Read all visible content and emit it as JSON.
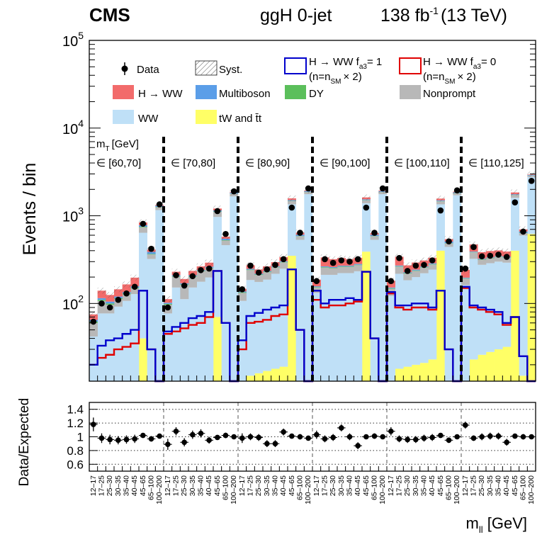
{
  "header": {
    "experiment": "CMS",
    "category": "ggH 0-jet",
    "lumi_value": "138 fb",
    "lumi_exp": "-1",
    "energy": "(13 TeV)"
  },
  "legend": {
    "data": "Data",
    "syst": "Syst.",
    "sig1_a": "H → WW f",
    "sig1_sub": "a3",
    "sig1_b": "= 1",
    "sig1_note_a": "(n=n",
    "sig1_note_sub": "SM",
    "sig1_note_b": "× 2)",
    "sig0_a": "H → WW f",
    "sig0_sub": "a3",
    "sig0_b": "= 0",
    "sig0_note_a": "(n=n",
    "sig0_note_sub": "SM",
    "sig0_note_b": "× 2)",
    "hww": "H → WW",
    "multiboson": "Multiboson",
    "dy": "DY",
    "nonprompt": "Nonprompt",
    "ww": "WW",
    "top": "tW and t̄t"
  },
  "mt_label": "m",
  "mt_sub": "T",
  "mt_unit": "[GeV]",
  "colors": {
    "hww": "#f26b6b",
    "multiboson": "#5b9ee8",
    "dy": "#5bbf5b",
    "nonprompt": "#b8b8b8",
    "ww": "#bfe0f7",
    "top": "#ffff66",
    "sig1": "#0000cc",
    "sig0": "#e00000"
  },
  "chart_data": [
    {
      "type": "bar",
      "title": "ggH 0-jet",
      "stacked": true,
      "log_y": true,
      "ylabel": "Events / bin",
      "xlabel": "m_ll [GeV]",
      "ylim": [
        13,
        100000
      ],
      "y_ticks": [
        {
          "value": 100,
          "base": "10",
          "exp": "2"
        },
        {
          "value": 1000,
          "base": "10",
          "exp": "3"
        },
        {
          "value": 10000,
          "base": "10",
          "exp": "4"
        },
        {
          "value": 100000,
          "base": "10",
          "exp": "5"
        }
      ],
      "mt_bins": [
        "∈ [60,70]",
        "∈ [70,80]",
        "∈ [80,90]",
        "∈ [90,100]",
        "∈ [100,110]",
        "∈ [110,125]"
      ],
      "mll_labels": [
        "12–17",
        "17–25",
        "25–30",
        "30–35",
        "35–40",
        "40–45",
        "45–65",
        "65–100",
        "100–200"
      ],
      "data": [
        [
          62,
          100,
          90,
          110,
          130,
          155,
          810,
          420,
          1350
        ],
        [
          90,
          210,
          160,
          205,
          240,
          250,
          1130,
          620,
          1900
        ],
        [
          145,
          270,
          225,
          245,
          275,
          320,
          1240,
          640,
          2050
        ],
        [
          180,
          320,
          290,
          310,
          300,
          320,
          1240,
          640,
          2050
        ],
        [
          180,
          330,
          235,
          270,
          275,
          310,
          1150,
          510,
          1950
        ],
        [
          250,
          440,
          345,
          350,
          360,
          340,
          1420,
          660,
          2500
        ]
      ],
      "top": [
        [
          12,
          12,
          12,
          12,
          12,
          13,
          40,
          12,
          12
        ],
        [
          12,
          12,
          12,
          12,
          12,
          13,
          70,
          12,
          12
        ],
        [
          12,
          15,
          16,
          17,
          18,
          19,
          350,
          12,
          12
        ],
        [
          12,
          12,
          12,
          12,
          12,
          13,
          390,
          12,
          12
        ],
        [
          12,
          18,
          19,
          20,
          21,
          23,
          400,
          12,
          12
        ],
        [
          12,
          23,
          26,
          28,
          30,
          32,
          400,
          15,
          620
        ]
      ],
      "ww": [
        [
          30,
          65,
          65,
          80,
          95,
          115,
          600,
          310,
          1150
        ],
        [
          65,
          140,
          100,
          140,
          165,
          185,
          900,
          450,
          1650
        ],
        [
          95,
          170,
          160,
          170,
          200,
          230,
          1000,
          520,
          1750
        ],
        [
          120,
          200,
          200,
          210,
          210,
          220,
          1000,
          520,
          1750
        ],
        [
          110,
          200,
          165,
          180,
          200,
          220,
          950,
          430,
          1700
        ],
        [
          150,
          300,
          250,
          260,
          270,
          260,
          1200,
          580,
          2150
        ]
      ],
      "nonprompt": [
        [
          18,
          30,
          20,
          20,
          20,
          20,
          100,
          40,
          90
        ],
        [
          20,
          50,
          50,
          50,
          55,
          55,
          140,
          60,
          120
        ],
        [
          25,
          55,
          35,
          40,
          40,
          45,
          120,
          50,
          100
        ],
        [
          20,
          45,
          40,
          40,
          40,
          40,
          110,
          50,
          100
        ],
        [
          25,
          45,
          35,
          35,
          35,
          35,
          110,
          40,
          90
        ],
        [
          30,
          60,
          40,
          40,
          40,
          40,
          120,
          40,
          100
        ]
      ],
      "dy": [
        [
          2,
          3,
          3,
          3,
          3,
          3,
          10,
          5,
          10
        ],
        [
          2,
          3,
          3,
          3,
          3,
          3,
          10,
          5,
          10
        ],
        [
          2,
          3,
          3,
          3,
          3,
          3,
          10,
          5,
          10
        ],
        [
          2,
          3,
          3,
          3,
          3,
          3,
          10,
          5,
          10
        ],
        [
          2,
          3,
          3,
          3,
          3,
          3,
          10,
          5,
          10
        ],
        [
          2,
          3,
          3,
          3,
          3,
          3,
          10,
          5,
          10
        ]
      ],
      "multiboson": [
        [
          3,
          5,
          5,
          5,
          5,
          6,
          30,
          20,
          40
        ],
        [
          3,
          5,
          5,
          5,
          5,
          6,
          30,
          20,
          40
        ],
        [
          3,
          5,
          5,
          5,
          5,
          6,
          30,
          20,
          40
        ],
        [
          3,
          5,
          5,
          5,
          5,
          6,
          30,
          20,
          40
        ],
        [
          3,
          5,
          5,
          5,
          5,
          6,
          30,
          20,
          40
        ],
        [
          3,
          5,
          5,
          5,
          5,
          6,
          30,
          20,
          40
        ]
      ],
      "hww": [
        [
          10,
          25,
          20,
          25,
          30,
          40,
          60,
          25,
          30
        ],
        [
          10,
          20,
          20,
          25,
          25,
          30,
          60,
          30,
          30
        ],
        [
          10,
          25,
          25,
          30,
          30,
          35,
          70,
          35,
          35
        ],
        [
          30,
          70,
          60,
          60,
          50,
          50,
          80,
          30,
          35
        ],
        [
          30,
          70,
          45,
          50,
          45,
          45,
          70,
          35,
          35
        ],
        [
          45,
          80,
          60,
          60,
          55,
          50,
          85,
          40,
          35
        ]
      ],
      "sig_fa3_1": [
        [
          20,
          33,
          38,
          40,
          45,
          50,
          140,
          30,
          12
        ],
        [
          48,
          54,
          60,
          68,
          72,
          80,
          235,
          60,
          12
        ],
        [
          38,
          72,
          78,
          85,
          90,
          95,
          245,
          50,
          12
        ],
        [
          140,
          100,
          110,
          110,
          115,
          110,
          230,
          40,
          12
        ],
        [
          135,
          95,
          95,
          100,
          100,
          90,
          140,
          30,
          12
        ],
        [
          155,
          95,
          90,
          85,
          80,
          60,
          70,
          25,
          12
        ]
      ],
      "sig_fa3_0": [
        [
          20,
          24,
          26,
          30,
          32,
          35,
          140,
          30,
          12
        ],
        [
          45,
          48,
          52,
          57,
          60,
          70,
          235,
          60,
          12
        ],
        [
          30,
          60,
          62,
          65,
          72,
          75,
          245,
          50,
          12
        ],
        [
          110,
          90,
          95,
          95,
          100,
          105,
          230,
          40,
          12
        ],
        [
          130,
          90,
          85,
          90,
          90,
          85,
          140,
          30,
          12
        ],
        [
          150,
          90,
          85,
          80,
          75,
          57,
          70,
          25,
          12
        ]
      ]
    },
    {
      "type": "scatter",
      "title": "",
      "ylabel": "Data/Expected",
      "xlabel": "m_ll [GeV]",
      "ylim": [
        0.5,
        1.5
      ],
      "y_ticks": [
        "0.6",
        "0.8",
        "1",
        "1.2",
        "1.4"
      ],
      "ratio": [
        [
          1.18,
          0.98,
          0.96,
          0.95,
          0.96,
          0.97,
          1.02,
          0.97,
          1.01
        ],
        [
          0.89,
          1.08,
          0.92,
          1.03,
          1.05,
          0.95,
          0.99,
          1.02,
          1.0
        ],
        [
          0.98,
          1.0,
          0.99,
          0.9,
          0.9,
          1.07,
          1.01,
          1.0,
          0.98
        ],
        [
          1.03,
          0.97,
          0.99,
          1.13,
          1.0,
          0.87,
          1.0,
          1.01,
          1.0
        ],
        [
          1.08,
          0.97,
          0.96,
          0.96,
          0.98,
          0.99,
          1.02,
          0.95,
          1.0
        ],
        [
          1.17,
          0.98,
          1.0,
          1.01,
          1.01,
          0.92,
          1.01,
          1.0,
          1.0
        ]
      ],
      "errors": [
        [
          0.1,
          0.07,
          0.07,
          0.06,
          0.06,
          0.06,
          0.03,
          0.04,
          0.03
        ],
        [
          0.08,
          0.06,
          0.06,
          0.06,
          0.06,
          0.05,
          0.03,
          0.04,
          0.03
        ],
        [
          0.07,
          0.05,
          0.05,
          0.05,
          0.05,
          0.05,
          0.03,
          0.04,
          0.03
        ],
        [
          0.06,
          0.05,
          0.05,
          0.05,
          0.05,
          0.05,
          0.03,
          0.04,
          0.03
        ],
        [
          0.06,
          0.05,
          0.05,
          0.05,
          0.05,
          0.05,
          0.03,
          0.04,
          0.03
        ],
        [
          0.05,
          0.04,
          0.05,
          0.05,
          0.05,
          0.05,
          0.03,
          0.04,
          0.03
        ]
      ]
    }
  ]
}
